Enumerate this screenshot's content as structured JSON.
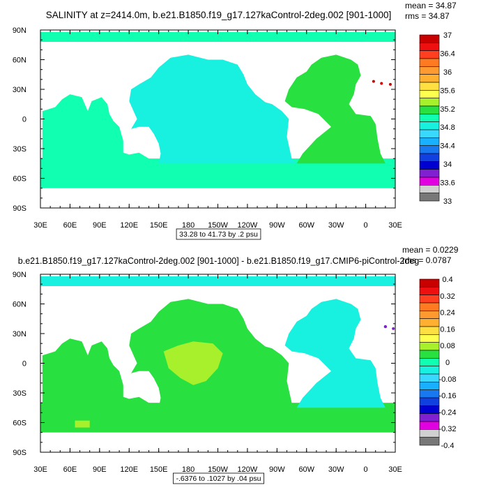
{
  "chart_data": [
    {
      "type": "heatmap",
      "title": "SALINITY at z=2414.0m, b.e21.B1850.f19_g17.127kaControl-2deg.002 [901-1000]",
      "stats": {
        "mean": "mean = 34.87",
        "rms": "rms = 34.87"
      },
      "range_label": "33.28 to 41.73 by .2 psu",
      "x_ticks": [
        "30E",
        "60E",
        "90E",
        "120E",
        "150E",
        "180",
        "150W",
        "120W",
        "90W",
        "60W",
        "30W",
        "0",
        "30E"
      ],
      "y_ticks": [
        "90N",
        "60N",
        "30N",
        "0",
        "30S",
        "60S",
        "90S"
      ],
      "colorbar": {
        "labels": [
          "37",
          "36.4",
          "36",
          "35.6",
          "35.2",
          "34.8",
          "34.4",
          "34",
          "33.6",
          "33"
        ],
        "colors": [
          "#c80000",
          "#ee1010",
          "#ff4020",
          "#ff7a20",
          "#ff9a30",
          "#ffb030",
          "#ffe040",
          "#ffff50",
          "#a8f02c",
          "#28e040",
          "#10ffb0",
          "#18f0e0",
          "#38d8ff",
          "#18b0ff",
          "#1878f0",
          "#1040e0",
          "#0000d0",
          "#8020d0",
          "#e000e0",
          "#d0d0d0",
          "#787878"
        ]
      },
      "fill": {
        "pacific": "#18f0e0",
        "indian": "#10ffb0",
        "atlantic": "#28e040",
        "southern": "#10ffb0",
        "arctic": "#10ffb0"
      }
    },
    {
      "type": "heatmap",
      "title": "b.e21.B1850.f19_g17.127kaControl-2deg.002 [901-1000] - b.e21.B1850.f19_g17.CMIP6-piControl-2deg",
      "stats": {
        "mean": "mean = 0.0229",
        "rms": "rms = 0.0787"
      },
      "range_label": "-.6376 to .1027 by .04 psu",
      "x_ticks": [
        "30E",
        "60E",
        "90E",
        "120E",
        "150E",
        "180",
        "150W",
        "120W",
        "90W",
        "60W",
        "30W",
        "0",
        "30E"
      ],
      "y_ticks": [
        "90N",
        "60N",
        "30N",
        "0",
        "30S",
        "60S",
        "90S"
      ],
      "colorbar": {
        "labels": [
          "0.4",
          "0.32",
          "0.24",
          "0.16",
          "0.08",
          "0",
          "-0.08",
          "-0.16",
          "-0.24",
          "-0.32",
          "-0.4"
        ],
        "colors": [
          "#c80000",
          "#ee1010",
          "#ff4020",
          "#ff7a20",
          "#ff9a30",
          "#ffb030",
          "#ffe040",
          "#ffff50",
          "#a8f02c",
          "#28e040",
          "#10ffb0",
          "#18f0e0",
          "#38d8ff",
          "#18b0ff",
          "#1878f0",
          "#1040e0",
          "#0000d0",
          "#8020d0",
          "#e000e0",
          "#d0d0d0",
          "#787878"
        ]
      },
      "fill": {
        "pacific": "#28e040",
        "indian": "#28e040",
        "atlantic": "#18f0e0",
        "southern": "#28e040",
        "arctic": "#18f0e0",
        "patch": "#a8f02c"
      }
    }
  ]
}
